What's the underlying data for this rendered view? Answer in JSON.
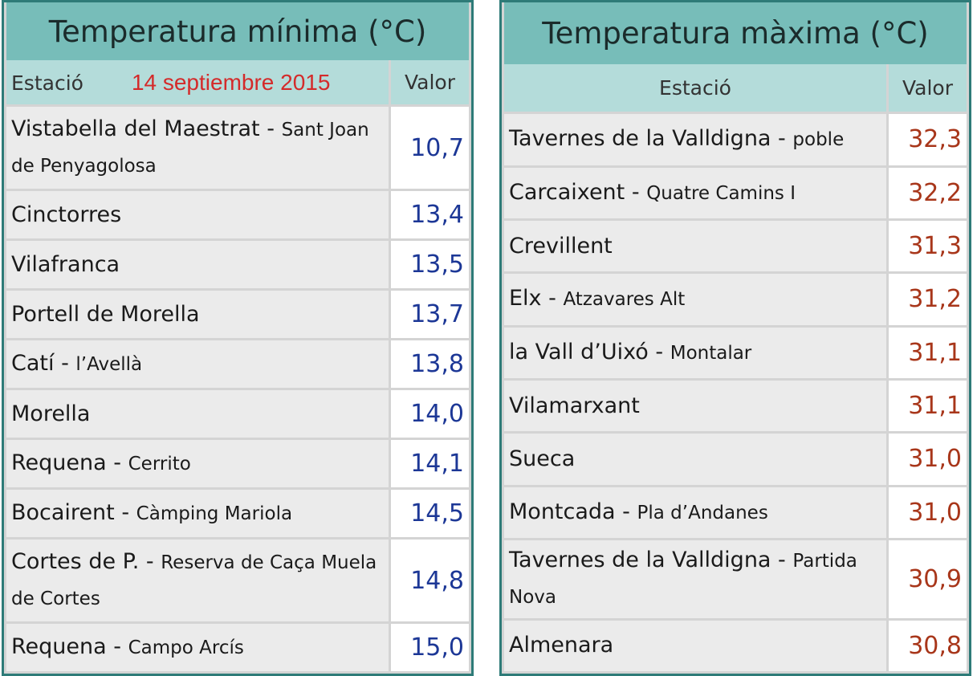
{
  "tables": [
    {
      "title": "Temperatura mínima (°C)",
      "header": {
        "station": "Estació",
        "date": "14 septiembre 2015",
        "value": "Valor"
      },
      "tone": "min",
      "rows": [
        {
          "name": "Vistabella del Maestrat -",
          "detail": "Sant Joan de Penyagolosa",
          "value": "10,7"
        },
        {
          "name": "Cinctorres",
          "value": "13,4"
        },
        {
          "name": "Vilafranca",
          "value": "13,5"
        },
        {
          "name": "Portell de Morella",
          "value": "13,7"
        },
        {
          "name": "Catí -",
          "detail": "l’Avellà",
          "value": "13,8"
        },
        {
          "name": "Morella",
          "value": "14,0"
        },
        {
          "name": "Requena -",
          "detail": "Cerrito",
          "value": "14,1"
        },
        {
          "name": "Bocairent -",
          "detail": "Càmping Mariola",
          "value": "14,5"
        },
        {
          "name": "Cortes de P. -",
          "detail": "Reserva de Caça Muela de Cortes",
          "value": "14,8"
        },
        {
          "name": "Requena -",
          "detail": "Campo Arcís",
          "value": "15,0"
        }
      ]
    },
    {
      "title": "Temperatura màxima (°C)",
      "header": {
        "station": "Estació",
        "value": "Valor"
      },
      "tone": "max",
      "rows": [
        {
          "name": "Tavernes de la Valldigna -",
          "detail": "poble",
          "value": "32,3"
        },
        {
          "name": "Carcaixent -",
          "detail": "Quatre Camins I",
          "value": "32,2"
        },
        {
          "name": "Crevillent",
          "value": "31,3"
        },
        {
          "name": "Elx -",
          "detail": "Atzavares Alt",
          "value": "31,2"
        },
        {
          "name": "la Vall d’Uixó -",
          "detail": "Montalar",
          "value": "31,1"
        },
        {
          "name": "Vilamarxant",
          "value": "31,1"
        },
        {
          "name": "Sueca",
          "value": "31,0"
        },
        {
          "name": "Montcada -",
          "detail": "Pla d’Andanes",
          "value": "31,0"
        },
        {
          "name": "Tavernes de la Valldigna -",
          "detail": "Partida Nova",
          "value": "30,9"
        },
        {
          "name": "Almenara",
          "value": "30,8"
        }
      ]
    }
  ]
}
